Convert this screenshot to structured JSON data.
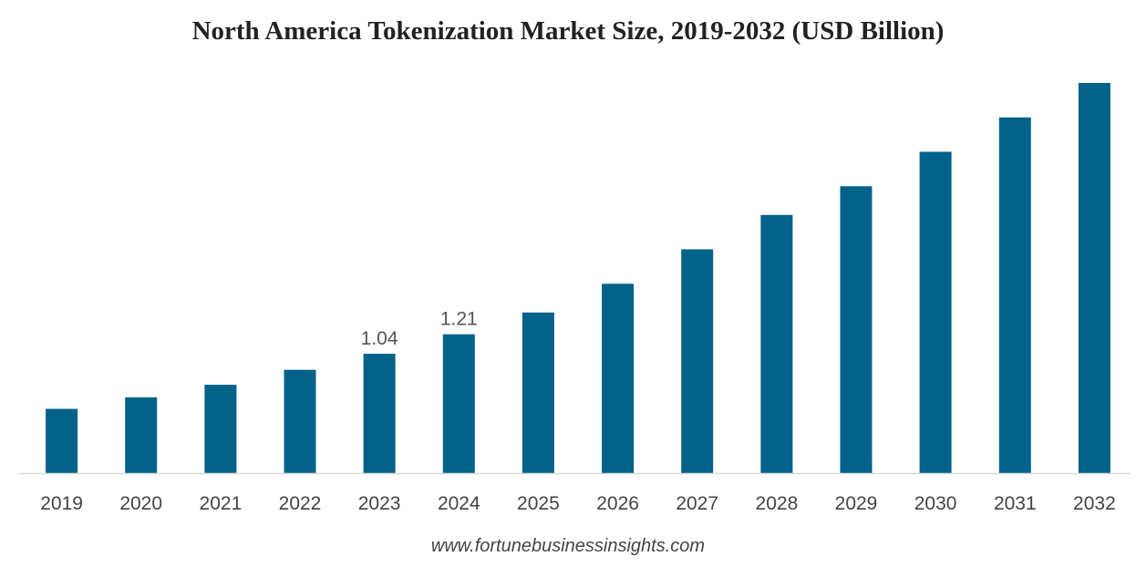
{
  "chart_data": {
    "type": "bar",
    "title": "North America Tokenization Market Size, 2019-2032 (USD Billion)",
    "xlabel": "",
    "ylabel": "",
    "categories": [
      "2019",
      "2020",
      "2021",
      "2022",
      "2023",
      "2024",
      "2025",
      "2026",
      "2027",
      "2028",
      "2029",
      "2030",
      "2031",
      "2032"
    ],
    "values": [
      0.56,
      0.66,
      0.77,
      0.9,
      1.04,
      1.21,
      1.4,
      1.65,
      1.95,
      2.25,
      2.5,
      2.8,
      3.1,
      3.4
    ],
    "data_labels": {
      "2023": "1.04",
      "2024": "1.21"
    },
    "ylim": [
      0,
      3.5
    ],
    "grid": false,
    "legend": "none",
    "bar_color": "#02628a",
    "axis_color": "#d9d9d9"
  },
  "footer": {
    "source": "www.fortunebusinessinsights.com"
  }
}
